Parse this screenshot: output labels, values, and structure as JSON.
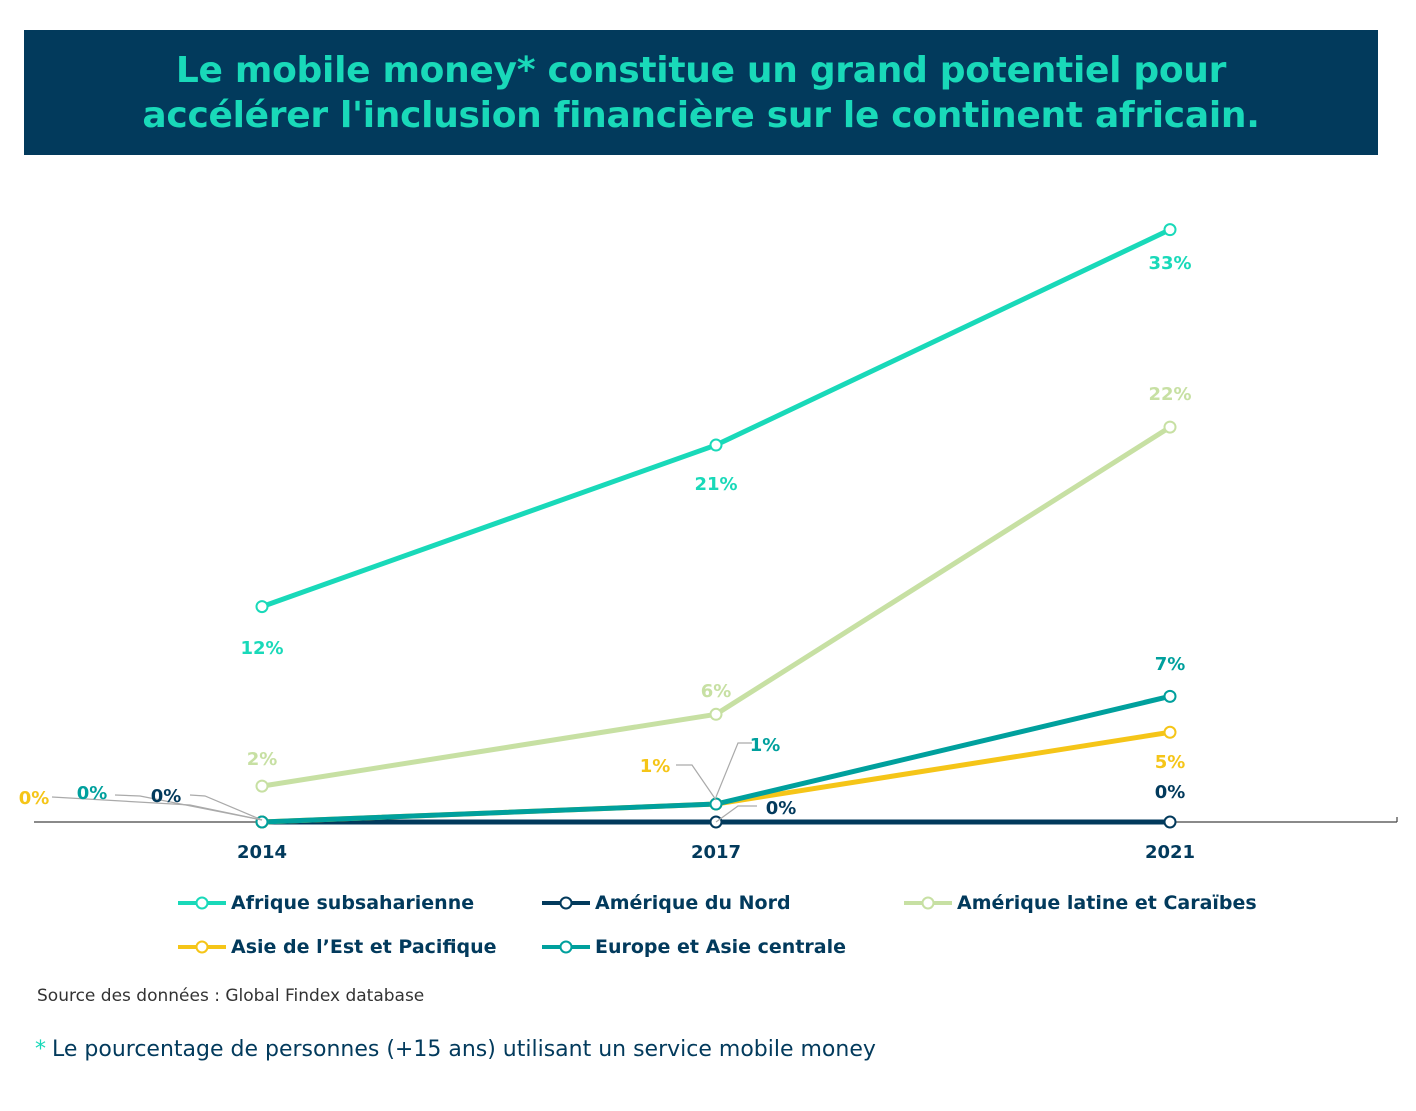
{
  "title_lines": [
    "Le mobile money* constitue un grand potentiel pour",
    "accélérer l'inclusion financière sur le continent africain."
  ],
  "chart_data": {
    "type": "line",
    "x": [
      "2014",
      "2017",
      "2021"
    ],
    "ylim": [
      0,
      35
    ],
    "grid": false,
    "legend_position": "bottom",
    "series": [
      {
        "name": "Afrique subsaharienne",
        "values": [
          12,
          21,
          33
        ],
        "labels": [
          "12%",
          "21%",
          "33%"
        ],
        "color": "#19d9b9"
      },
      {
        "name": "Amérique du Nord",
        "values": [
          0,
          0,
          0
        ],
        "labels": [
          "0%",
          "0%",
          "0%"
        ],
        "color": "#023a5c"
      },
      {
        "name": "Amérique latine et Caraïbes",
        "values": [
          2,
          6,
          22
        ],
        "labels": [
          "2%",
          "6%",
          "22%"
        ],
        "color": "#c7e0a3"
      },
      {
        "name": "Asie de l’Est et Pacifique",
        "values": [
          0,
          1,
          5
        ],
        "labels": [
          "0%",
          "1%",
          "5%"
        ],
        "color": "#f5c518"
      },
      {
        "name": "Europe et Asie centrale",
        "values": [
          0,
          1,
          7
        ],
        "labels": [
          "0%",
          "1%",
          "7%"
        ],
        "color": "#00a09d"
      }
    ]
  },
  "source": "Source des données : Global Findex database",
  "note": {
    "star": "*",
    "text": "Le pourcentage de personnes (+15 ans) utilisant un service mobile money"
  }
}
